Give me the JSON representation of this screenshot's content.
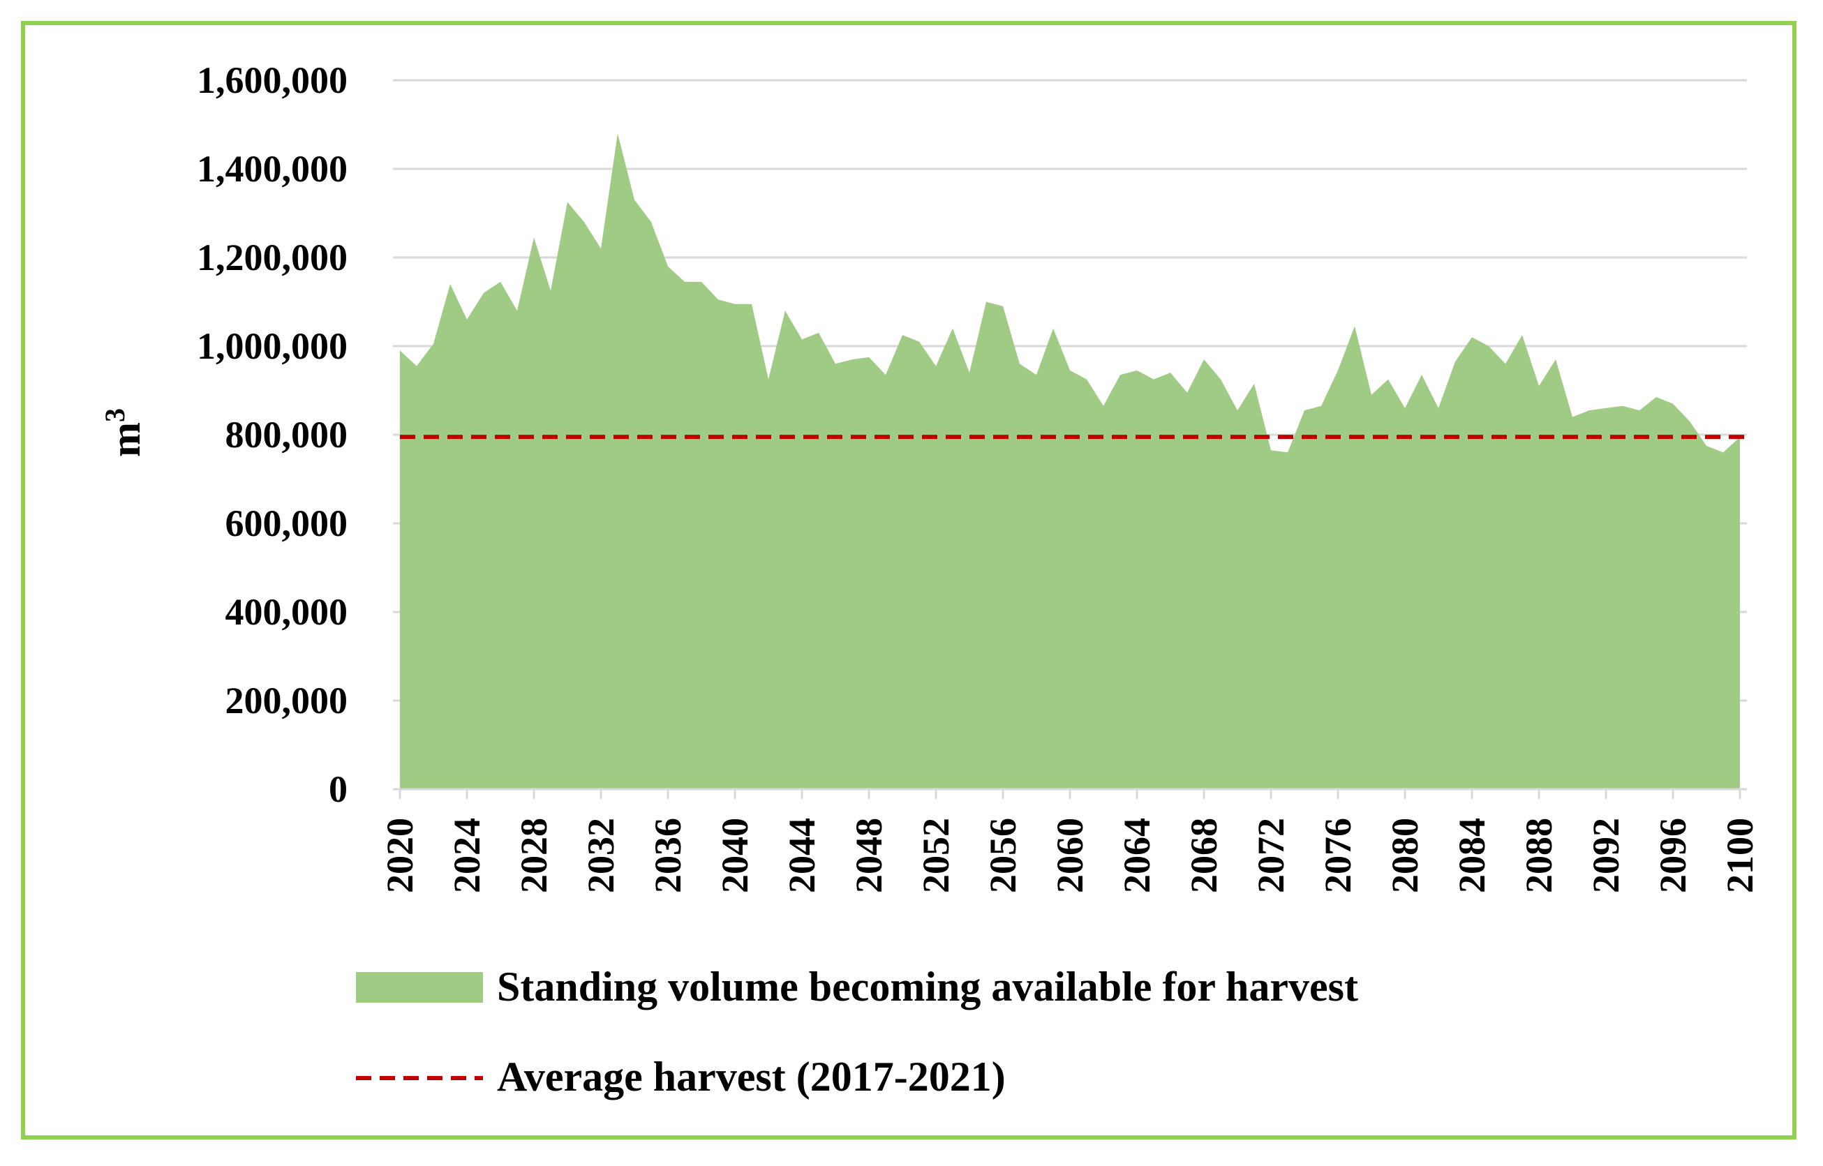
{
  "chart_data": {
    "type": "area",
    "title": "",
    "xlabel": "",
    "ylabel": "m",
    "ylabel_superscript": "3",
    "xlim": [
      2020,
      2100
    ],
    "ylim": [
      0,
      1600000
    ],
    "grid": true,
    "legend_position": "bottom",
    "y_ticks": [
      "0",
      "200,000",
      "400,000",
      "600,000",
      "800,000",
      "1,000,000",
      "1,200,000",
      "1,400,000",
      "1,600,000"
    ],
    "y_tick_values": [
      0,
      200000,
      400000,
      600000,
      800000,
      1000000,
      1200000,
      1400000,
      1600000
    ],
    "x_ticks": [
      "2020",
      "2024",
      "2028",
      "2032",
      "2036",
      "2040",
      "2044",
      "2048",
      "2052",
      "2056",
      "2060",
      "2064",
      "2068",
      "2072",
      "2076",
      "2080",
      "2084",
      "2088",
      "2092",
      "2096",
      "2100"
    ],
    "x_tick_values": [
      2020,
      2024,
      2028,
      2032,
      2036,
      2040,
      2044,
      2048,
      2052,
      2056,
      2060,
      2064,
      2068,
      2072,
      2076,
      2080,
      2084,
      2088,
      2092,
      2096,
      2100
    ],
    "series": [
      {
        "name": "Standing volume becoming available for harvest",
        "type": "area",
        "color": "#A0CB84",
        "x": [
          2020,
          2021,
          2022,
          2023,
          2024,
          2025,
          2026,
          2027,
          2028,
          2029,
          2030,
          2031,
          2032,
          2033,
          2034,
          2035,
          2036,
          2037,
          2038,
          2039,
          2040,
          2041,
          2042,
          2043,
          2044,
          2045,
          2046,
          2047,
          2048,
          2049,
          2050,
          2051,
          2052,
          2053,
          2054,
          2055,
          2056,
          2057,
          2058,
          2059,
          2060,
          2061,
          2062,
          2063,
          2064,
          2065,
          2066,
          2067,
          2068,
          2069,
          2070,
          2071,
          2072,
          2073,
          2074,
          2075,
          2076,
          2077,
          2078,
          2079,
          2080,
          2081,
          2082,
          2083,
          2084,
          2085,
          2086,
          2087,
          2088,
          2089,
          2090,
          2091,
          2092,
          2093,
          2094,
          2095,
          2096,
          2097,
          2098,
          2099,
          2100
        ],
        "values": [
          990000,
          955000,
          1005000,
          1140000,
          1060000,
          1120000,
          1145000,
          1080000,
          1245000,
          1125000,
          1325000,
          1280000,
          1220000,
          1480000,
          1330000,
          1280000,
          1180000,
          1145000,
          1145000,
          1105000,
          1095000,
          1095000,
          925000,
          1080000,
          1015000,
          1030000,
          960000,
          970000,
          975000,
          935000,
          1025000,
          1010000,
          955000,
          1040000,
          940000,
          1100000,
          1090000,
          960000,
          935000,
          1040000,
          945000,
          925000,
          865000,
          935000,
          945000,
          925000,
          940000,
          895000,
          970000,
          925000,
          855000,
          915000,
          765000,
          760000,
          855000,
          865000,
          945000,
          1045000,
          890000,
          925000,
          860000,
          935000,
          860000,
          965000,
          1020000,
          1000000,
          960000,
          1025000,
          910000,
          970000,
          840000,
          855000,
          860000,
          865000,
          855000,
          885000,
          870000,
          830000,
          775000,
          760000,
          795000
        ]
      },
      {
        "name": "Average harvest (2017-2021)",
        "type": "line",
        "style": "dashed",
        "color": "#C00000",
        "value": 795000
      }
    ]
  }
}
